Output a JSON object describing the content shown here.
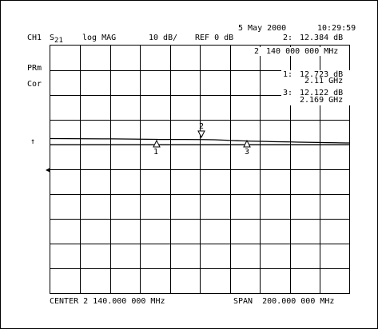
{
  "header": {
    "date": "5 May 2000",
    "time": "10:29:59",
    "channel": "CH1",
    "param_main": "S",
    "param_sub": "21",
    "format": "log MAG",
    "scale": "10 dB/",
    "reference": "REF 0 dB",
    "active_marker": "2:",
    "active_marker_value": "12.384 dB"
  },
  "side_labels": {
    "prm": "PRm",
    "cor": "Cor",
    "ref_arrow": "↑"
  },
  "marker_readouts": [
    {
      "id": "2",
      "line1": "140 000 000 MHz",
      "line2": ""
    },
    {
      "id": "1:",
      "line1": "12.723 dB",
      "line2": "2.11 GHz"
    },
    {
      "id": "3:",
      "line1": "12.122 dB",
      "line2": "2.169 GHz"
    }
  ],
  "markers": [
    {
      "label": "1"
    },
    {
      "label": "2"
    },
    {
      "label": "3"
    }
  ],
  "footer": {
    "center": "CENTER 2 140.000 000 MHz",
    "span": "SPAN  200.000 000 MHz"
  },
  "colors": {
    "ink": "#000000",
    "background": "#ffffff"
  }
}
